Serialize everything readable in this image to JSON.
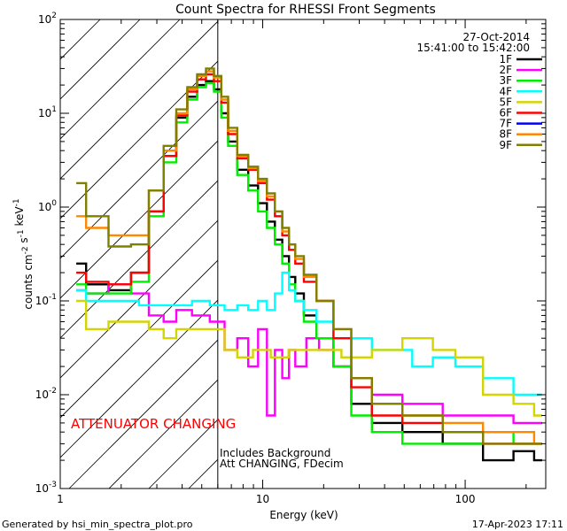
{
  "chart_data": {
    "type": "line",
    "title": "Count Spectra for RHESSI Front Segments",
    "xlabel": "Energy (keV)",
    "ylabel": "counts cm-2 s-1 keV-1",
    "xscale": "log",
    "yscale": "log",
    "xlim": [
      1,
      250
    ],
    "ylim": [
      0.001,
      100
    ],
    "x_ticks": [
      {
        "value": 1,
        "label": "1"
      },
      {
        "value": 10,
        "label": "10"
      },
      {
        "value": 100,
        "label": "100"
      }
    ],
    "y_ticks": [
      {
        "value": 0.001,
        "base": "10",
        "exp": "-3"
      },
      {
        "value": 0.01,
        "base": "10",
        "exp": "-2"
      },
      {
        "value": 0.1,
        "base": "10",
        "exp": "-1"
      },
      {
        "value": 1,
        "base": "10",
        "exp": "0"
      },
      {
        "value": 10,
        "base": "10",
        "exp": "1"
      },
      {
        "value": 100,
        "base": "10",
        "exp": "2"
      }
    ],
    "date": "27-Oct-2014",
    "time_range": "15:41:00 to 15:42:00",
    "attenuator_label": "ATTENUATOR CHANGING",
    "background_note": "Includes Background",
    "attenuator_note": "Att CHANGING, FDecim",
    "hatched_region_xmax": 6,
    "vertical_line_x": 6,
    "series": [
      {
        "name": "1F",
        "color": "#000000",
        "points": [
          [
            1.2,
            0.25
          ],
          [
            1.5,
            0.15
          ],
          [
            2.0,
            0.13
          ],
          [
            2.5,
            0.2
          ],
          [
            3.0,
            0.9
          ],
          [
            3.5,
            3.5
          ],
          [
            4.0,
            9.0
          ],
          [
            4.5,
            15
          ],
          [
            5.0,
            20
          ],
          [
            5.5,
            22
          ],
          [
            6.0,
            18
          ],
          [
            6.5,
            10
          ],
          [
            7.0,
            5.0
          ],
          [
            8.0,
            2.5
          ],
          [
            9.0,
            1.7
          ],
          [
            10.0,
            1.1
          ],
          [
            11.0,
            0.7
          ],
          [
            12.0,
            0.45
          ],
          [
            13.0,
            0.3
          ],
          [
            14.0,
            0.18
          ],
          [
            15.0,
            0.12
          ],
          [
            17.0,
            0.07
          ],
          [
            20.0,
            0.04
          ],
          [
            25.0,
            0.02
          ],
          [
            30.0,
            0.008
          ],
          [
            40.0,
            0.005
          ],
          [
            60.0,
            0.004
          ],
          [
            100.0,
            0.003
          ],
          [
            150.0,
            0.002
          ],
          [
            200.0,
            0.0025
          ],
          [
            240.0,
            0.002
          ]
        ]
      },
      {
        "name": "2F",
        "color": "#ff00ff",
        "points": [
          [
            1.2,
            0.13
          ],
          [
            1.5,
            0.12
          ],
          [
            2.0,
            0.15
          ],
          [
            2.5,
            0.12
          ],
          [
            3.0,
            0.07
          ],
          [
            3.5,
            0.06
          ],
          [
            4.0,
            0.08
          ],
          [
            5.0,
            0.07
          ],
          [
            6.0,
            0.06
          ],
          [
            7.0,
            0.03
          ],
          [
            8.0,
            0.04
          ],
          [
            9.0,
            0.02
          ],
          [
            10.0,
            0.05
          ],
          [
            11.0,
            0.006
          ],
          [
            12.0,
            0.03
          ],
          [
            13.0,
            0.015
          ],
          [
            14.0,
            0.03
          ],
          [
            15.0,
            0.02
          ],
          [
            18.0,
            0.04
          ],
          [
            20.0,
            0.03
          ],
          [
            25.0,
            0.02
          ],
          [
            30.0,
            0.015
          ],
          [
            40.0,
            0.01
          ],
          [
            60.0,
            0.008
          ],
          [
            100.0,
            0.006
          ],
          [
            150.0,
            0.006
          ],
          [
            200.0,
            0.005
          ],
          [
            240.0,
            0.005
          ]
        ]
      },
      {
        "name": "3F",
        "color": "#00ee00",
        "points": [
          [
            1.2,
            0.15
          ],
          [
            1.5,
            0.12
          ],
          [
            2.0,
            0.12
          ],
          [
            2.5,
            0.16
          ],
          [
            3.0,
            0.8
          ],
          [
            3.5,
            3.0
          ],
          [
            4.0,
            8.0
          ],
          [
            4.5,
            14
          ],
          [
            5.0,
            19
          ],
          [
            5.5,
            21
          ],
          [
            6.0,
            17
          ],
          [
            6.5,
            9.0
          ],
          [
            7.0,
            4.5
          ],
          [
            8.0,
            2.2
          ],
          [
            9.0,
            1.5
          ],
          [
            10.0,
            0.9
          ],
          [
            11.0,
            0.6
          ],
          [
            12.0,
            0.4
          ],
          [
            13.0,
            0.25
          ],
          [
            14.0,
            0.15
          ],
          [
            15.0,
            0.1
          ],
          [
            17.0,
            0.06
          ],
          [
            20.0,
            0.04
          ],
          [
            25.0,
            0.02
          ],
          [
            30.0,
            0.006
          ],
          [
            40.0,
            0.004
          ],
          [
            60.0,
            0.003
          ],
          [
            100.0,
            0.003
          ],
          [
            150.0,
            0.004
          ],
          [
            200.0,
            0.003
          ],
          [
            240.0,
            0.003
          ]
        ]
      },
      {
        "name": "4F",
        "color": "#00ffff",
        "points": [
          [
            1.2,
            0.13
          ],
          [
            1.5,
            0.1
          ],
          [
            2.0,
            0.1
          ],
          [
            3.0,
            0.09
          ],
          [
            4.0,
            0.09
          ],
          [
            5.0,
            0.1
          ],
          [
            6.0,
            0.09
          ],
          [
            7.0,
            0.08
          ],
          [
            8.0,
            0.09
          ],
          [
            9.0,
            0.08
          ],
          [
            10.0,
            0.1
          ],
          [
            11.0,
            0.08
          ],
          [
            12.0,
            0.12
          ],
          [
            13.0,
            0.2
          ],
          [
            14.0,
            0.13
          ],
          [
            15.0,
            0.1
          ],
          [
            17.0,
            0.08
          ],
          [
            20.0,
            0.06
          ],
          [
            25.0,
            0.04
          ],
          [
            30.0,
            0.04
          ],
          [
            40.0,
            0.03
          ],
          [
            50.0,
            0.03
          ],
          [
            60.0,
            0.02
          ],
          [
            80.0,
            0.025
          ],
          [
            100.0,
            0.02
          ],
          [
            150.0,
            0.015
          ],
          [
            200.0,
            0.01
          ],
          [
            240.0,
            0.01
          ]
        ]
      },
      {
        "name": "5F",
        "color": "#d4d400",
        "points": [
          [
            1.2,
            0.1
          ],
          [
            1.5,
            0.05
          ],
          [
            2.0,
            0.06
          ],
          [
            2.5,
            0.06
          ],
          [
            3.0,
            0.05
          ],
          [
            3.5,
            0.04
          ],
          [
            4.0,
            0.05
          ],
          [
            5.0,
            0.05
          ],
          [
            6.0,
            0.05
          ],
          [
            7.0,
            0.03
          ],
          [
            8.0,
            0.025
          ],
          [
            10.0,
            0.03
          ],
          [
            12.0,
            0.025
          ],
          [
            15.0,
            0.03
          ],
          [
            20.0,
            0.03
          ],
          [
            30.0,
            0.025
          ],
          [
            40.0,
            0.03
          ],
          [
            60.0,
            0.04
          ],
          [
            80.0,
            0.03
          ],
          [
            100.0,
            0.025
          ],
          [
            150.0,
            0.01
          ],
          [
            200.0,
            0.008
          ],
          [
            240.0,
            0.006
          ]
        ]
      },
      {
        "name": "6F",
        "color": "#ff0000",
        "points": [
          [
            1.2,
            0.2
          ],
          [
            1.5,
            0.16
          ],
          [
            2.0,
            0.15
          ],
          [
            2.5,
            0.2
          ],
          [
            3.0,
            0.9
          ],
          [
            3.5,
            3.5
          ],
          [
            4.0,
            9.5
          ],
          [
            4.5,
            17
          ],
          [
            5.0,
            23
          ],
          [
            5.5,
            26
          ],
          [
            6.0,
            22
          ],
          [
            6.5,
            13
          ],
          [
            7.0,
            6.0
          ],
          [
            8.0,
            3.3
          ],
          [
            9.0,
            2.5
          ],
          [
            10.0,
            1.8
          ],
          [
            11.0,
            1.2
          ],
          [
            12.0,
            0.8
          ],
          [
            13.0,
            0.5
          ],
          [
            14.0,
            0.35
          ],
          [
            15.0,
            0.25
          ],
          [
            17.0,
            0.16
          ],
          [
            20.0,
            0.1
          ],
          [
            25.0,
            0.04
          ],
          [
            30.0,
            0.012
          ],
          [
            40.0,
            0.006
          ],
          [
            60.0,
            0.005
          ],
          [
            100.0,
            0.004
          ],
          [
            150.0,
            0.003
          ],
          [
            200.0,
            0.003
          ],
          [
            240.0,
            0.003
          ]
        ]
      },
      {
        "name": "7F",
        "color": "#0000ff",
        "points": []
      },
      {
        "name": "8F",
        "color": "#ff8800",
        "points": [
          [
            1.2,
            0.8
          ],
          [
            1.5,
            0.6
          ],
          [
            2.0,
            0.5
          ],
          [
            2.5,
            0.5
          ],
          [
            3.0,
            1.5
          ],
          [
            3.5,
            4.0
          ],
          [
            4.0,
            10
          ],
          [
            4.5,
            18
          ],
          [
            5.0,
            25
          ],
          [
            5.5,
            28
          ],
          [
            6.0,
            24
          ],
          [
            6.5,
            14
          ],
          [
            7.0,
            6.5
          ],
          [
            8.0,
            3.5
          ],
          [
            9.0,
            2.6
          ],
          [
            10.0,
            1.9
          ],
          [
            11.0,
            1.3
          ],
          [
            12.0,
            0.9
          ],
          [
            13.0,
            0.55
          ],
          [
            14.0,
            0.4
          ],
          [
            15.0,
            0.28
          ],
          [
            17.0,
            0.18
          ],
          [
            20.0,
            0.1
          ],
          [
            25.0,
            0.05
          ],
          [
            30.0,
            0.015
          ],
          [
            40.0,
            0.008
          ],
          [
            60.0,
            0.006
          ],
          [
            100.0,
            0.005
          ],
          [
            150.0,
            0.004
          ],
          [
            200.0,
            0.004
          ],
          [
            240.0,
            0.003
          ]
        ]
      },
      {
        "name": "9F",
        "color": "#808000",
        "points": [
          [
            1.2,
            1.8
          ],
          [
            1.5,
            0.8
          ],
          [
            2.0,
            0.38
          ],
          [
            2.5,
            0.4
          ],
          [
            3.0,
            1.5
          ],
          [
            3.5,
            4.5
          ],
          [
            4.0,
            11
          ],
          [
            4.5,
            19
          ],
          [
            5.0,
            26
          ],
          [
            5.5,
            30
          ],
          [
            6.0,
            25
          ],
          [
            6.5,
            15
          ],
          [
            7.0,
            7.0
          ],
          [
            8.0,
            3.6
          ],
          [
            9.0,
            2.7
          ],
          [
            10.0,
            2.0
          ],
          [
            11.0,
            1.4
          ],
          [
            12.0,
            0.9
          ],
          [
            13.0,
            0.6
          ],
          [
            14.0,
            0.4
          ],
          [
            15.0,
            0.3
          ],
          [
            17.0,
            0.19
          ],
          [
            20.0,
            0.1
          ],
          [
            25.0,
            0.05
          ],
          [
            30.0,
            0.015
          ],
          [
            40.0,
            0.008
          ],
          [
            60.0,
            0.006
          ],
          [
            100.0,
            0.004
          ],
          [
            150.0,
            0.003
          ],
          [
            200.0,
            0.003
          ],
          [
            240.0,
            0.003
          ]
        ]
      }
    ]
  },
  "footer": {
    "generated_by": "Generated by hsi_min_spectra_plot.pro",
    "timestamp": "17-Apr-2023 17:11"
  }
}
